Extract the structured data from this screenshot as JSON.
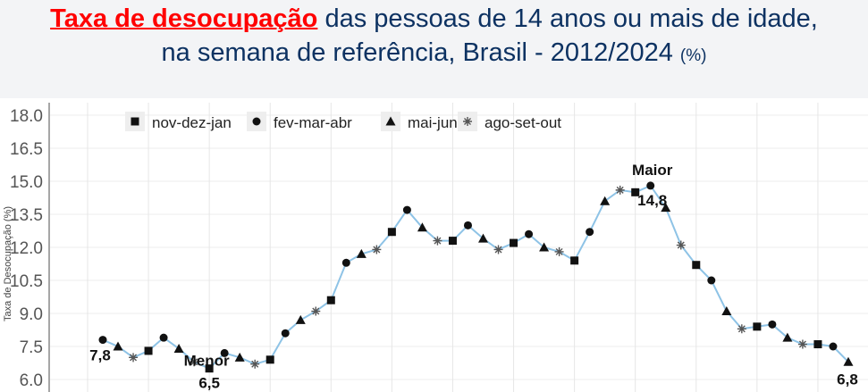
{
  "title": {
    "highlight": "Taxa de desocupação",
    "line1_rest": " das pessoas de 14 anos ou mais de idade,",
    "line2": "na semana de referência, Brasil - 2012/2024",
    "unit": "(%)",
    "highlight_color": "#ff0000",
    "text_color": "#0d3262"
  },
  "chart_data": {
    "type": "line",
    "ylabel": "Taxa de Desocupação (%)",
    "ylim": [
      6.0,
      18.0
    ],
    "yticks": [
      "6.0",
      "7.5",
      "9.0",
      "10.5",
      "12.0",
      "13.5",
      "15.0",
      "16.5",
      "18.0"
    ],
    "grid": true,
    "legend_placement": "top-left",
    "line_color": "#8ec3e6",
    "legend": [
      {
        "label": "nov-dez-jan",
        "marker": "square"
      },
      {
        "label": "fev-mar-abr",
        "marker": "circle"
      },
      {
        "label": "mai-jun-jul",
        "marker": "triangle"
      },
      {
        "label": "ago-set-out",
        "marker": "asterisk"
      }
    ],
    "first_quarter": "fev-mar-abr",
    "values": [
      7.8,
      7.5,
      7.0,
      7.3,
      7.9,
      7.4,
      6.8,
      6.5,
      7.2,
      7.0,
      6.7,
      6.9,
      8.1,
      8.7,
      9.1,
      9.6,
      11.3,
      11.7,
      11.9,
      12.7,
      13.7,
      12.9,
      12.3,
      12.3,
      13.0,
      12.4,
      11.9,
      12.2,
      12.6,
      12.0,
      11.8,
      11.4,
      12.7,
      14.1,
      14.6,
      14.5,
      14.8,
      13.8,
      12.1,
      11.2,
      10.5,
      9.1,
      8.3,
      8.4,
      8.5,
      7.9,
      7.6,
      7.6,
      7.5,
      6.8
    ],
    "annotations": [
      {
        "index": 0,
        "text": "7,8"
      },
      {
        "index": 7,
        "label": "Menor",
        "text": "6,5"
      },
      {
        "index": 36,
        "label": "Maior",
        "text": "14,8"
      },
      {
        "index": 49,
        "text": "6,8"
      }
    ]
  }
}
